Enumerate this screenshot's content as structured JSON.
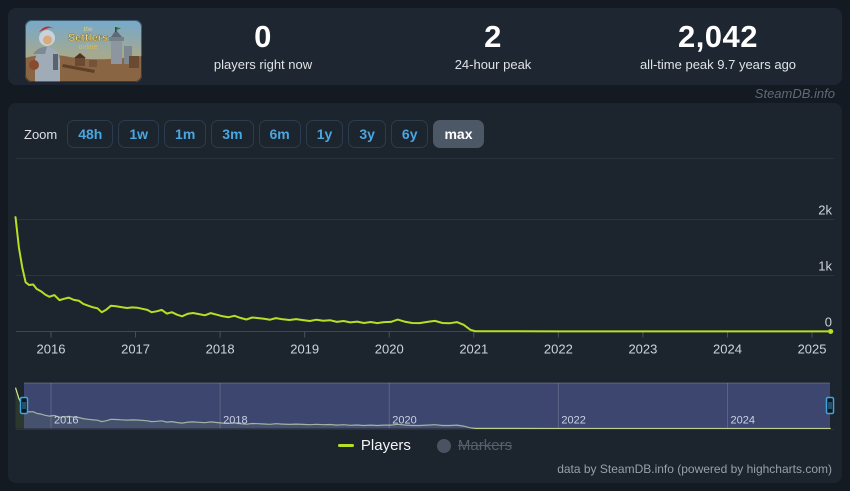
{
  "header": {
    "game_title": "The Settlers Online",
    "capsule": {
      "line1": "the",
      "line2": "Settlers",
      "line3": "online"
    },
    "stats": [
      {
        "value": "0",
        "label": "players right now"
      },
      {
        "value": "2",
        "label": "24-hour peak"
      },
      {
        "value": "2,042",
        "label": "all-time peak 9.7 years ago"
      }
    ],
    "watermark": "SteamDB.info"
  },
  "toolbar": {
    "zoom_label": "Zoom",
    "ranges": [
      "48h",
      "1w",
      "1m",
      "3m",
      "6m",
      "1y",
      "3y",
      "6y",
      "max"
    ],
    "selected": "max"
  },
  "legend": {
    "players_label": "Players",
    "markers_label": "Markers",
    "players_enabled": true,
    "markers_enabled": false
  },
  "credits": "data by SteamDB.info (powered by highcharts.com)",
  "colors": {
    "line": "#b6df25",
    "nav_line": "#d5ea8e",
    "nav_mask": "rgba(103,113,188,0.45)",
    "handle_border": "#3fa7e0",
    "legend_off": "#4a5361"
  },
  "chart_data": {
    "type": "line",
    "title": "",
    "xlabel": "",
    "ylabel": "Players",
    "legend_position": "bottom",
    "grid": true,
    "ylim": [
      0,
      2500
    ],
    "xlim": [
      2015.58,
      2025.22
    ],
    "yticks": [
      {
        "label": "2k",
        "value": 2000
      },
      {
        "label": "1k",
        "value": 1000
      },
      {
        "label": "0",
        "value": 0
      }
    ],
    "xticks": [
      2016,
      2017,
      2018,
      2019,
      2020,
      2021,
      2022,
      2023,
      2024,
      2025
    ],
    "series": [
      {
        "name": "Players",
        "points": [
          [
            2015.58,
            2042
          ],
          [
            2015.62,
            1500
          ],
          [
            2015.66,
            1150
          ],
          [
            2015.7,
            880
          ],
          [
            2015.74,
            830
          ],
          [
            2015.79,
            840
          ],
          [
            2015.83,
            760
          ],
          [
            2015.88,
            720
          ],
          [
            2015.93,
            660
          ],
          [
            2015.98,
            620
          ],
          [
            2016.04,
            650
          ],
          [
            2016.1,
            560
          ],
          [
            2016.16,
            585
          ],
          [
            2016.21,
            605
          ],
          [
            2016.27,
            565
          ],
          [
            2016.33,
            550
          ],
          [
            2016.38,
            495
          ],
          [
            2016.44,
            460
          ],
          [
            2016.5,
            430
          ],
          [
            2016.55,
            415
          ],
          [
            2016.6,
            345
          ],
          [
            2016.65,
            385
          ],
          [
            2016.71,
            460
          ],
          [
            2016.77,
            450
          ],
          [
            2016.83,
            435
          ],
          [
            2016.9,
            420
          ],
          [
            2016.96,
            430
          ],
          [
            2017.02,
            425
          ],
          [
            2017.08,
            405
          ],
          [
            2017.14,
            385
          ],
          [
            2017.19,
            345
          ],
          [
            2017.25,
            360
          ],
          [
            2017.31,
            385
          ],
          [
            2017.37,
            320
          ],
          [
            2017.43,
            345
          ],
          [
            2017.49,
            300
          ],
          [
            2017.55,
            272
          ],
          [
            2017.62,
            318
          ],
          [
            2017.68,
            330
          ],
          [
            2017.75,
            310
          ],
          [
            2017.82,
            290
          ],
          [
            2017.89,
            328
          ],
          [
            2017.96,
            300
          ],
          [
            2018.03,
            272
          ],
          [
            2018.1,
            255
          ],
          [
            2018.17,
            280
          ],
          [
            2018.24,
            242
          ],
          [
            2018.31,
            215
          ],
          [
            2018.38,
            250
          ],
          [
            2018.45,
            240
          ],
          [
            2018.52,
            226
          ],
          [
            2018.59,
            210
          ],
          [
            2018.66,
            240
          ],
          [
            2018.74,
            218
          ],
          [
            2018.82,
            206
          ],
          [
            2018.9,
            222
          ],
          [
            2018.98,
            204
          ],
          [
            2019.06,
            188
          ],
          [
            2019.14,
            210
          ],
          [
            2019.22,
            192
          ],
          [
            2019.3,
            202
          ],
          [
            2019.38,
            172
          ],
          [
            2019.46,
            188
          ],
          [
            2019.54,
            162
          ],
          [
            2019.62,
            176
          ],
          [
            2019.7,
            152
          ],
          [
            2019.78,
            170
          ],
          [
            2019.86,
            150
          ],
          [
            2019.94,
            168
          ],
          [
            2020.02,
            172
          ],
          [
            2020.1,
            212
          ],
          [
            2020.18,
            176
          ],
          [
            2020.27,
            152
          ],
          [
            2020.36,
            150
          ],
          [
            2020.45,
            172
          ],
          [
            2020.54,
            190
          ],
          [
            2020.63,
            152
          ],
          [
            2020.72,
            148
          ],
          [
            2020.8,
            168
          ],
          [
            2020.88,
            120
          ],
          [
            2020.96,
            30
          ],
          [
            2021.02,
            4
          ],
          [
            2021.5,
            3
          ],
          [
            2022.0,
            2
          ],
          [
            2022.5,
            2
          ],
          [
            2023.0,
            2
          ],
          [
            2023.5,
            2
          ],
          [
            2024.0,
            2
          ],
          [
            2024.5,
            2
          ],
          [
            2025.0,
            1
          ],
          [
            2025.22,
            1
          ]
        ]
      }
    ]
  },
  "navigator": {
    "xticks": [
      2016,
      2018,
      2020,
      2022,
      2024
    ],
    "range_selected": "full"
  }
}
